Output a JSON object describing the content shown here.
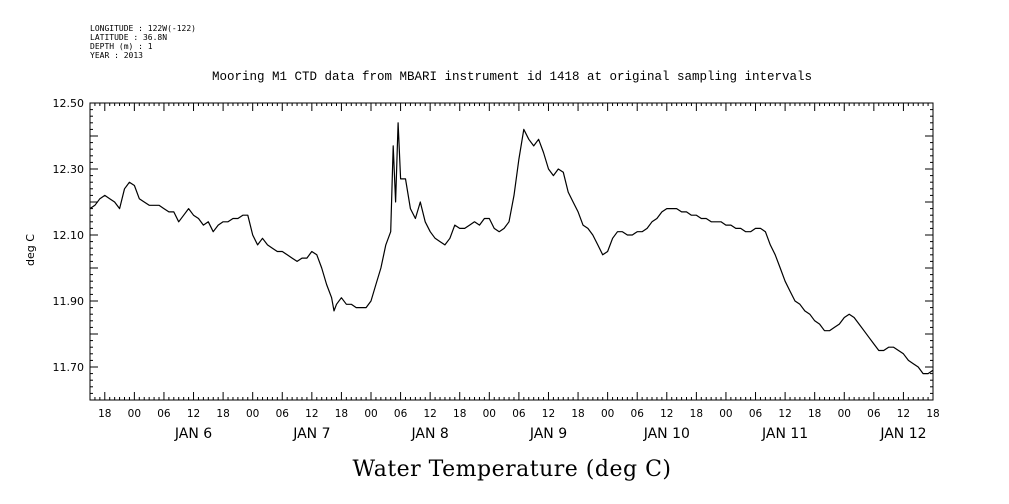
{
  "header": {
    "longitude": "LONGITUDE : 122W(-122)",
    "latitude": "LATITUDE : 36.8N",
    "depth": "DEPTH (m) : 1",
    "year": "YEAR : 2013"
  },
  "chart_data": {
    "type": "line",
    "title": "Mooring M1 CTD data from MBARI instrument id 1418 at original sampling intervals",
    "xlabel": "Water Temperature (deg C)",
    "ylabel": "deg C",
    "ylim": [
      11.6,
      12.5
    ],
    "yticks": [
      "12.50",
      "12.30",
      "12.10",
      "11.90",
      "11.70"
    ],
    "x_unit": "hours since 2013-01-05 00:00",
    "xlim": [
      15,
      186
    ],
    "hour_ticks": [
      "00",
      "06",
      "12",
      "18"
    ],
    "days": [
      "JAN 6",
      "JAN 7",
      "JAN 8",
      "JAN 9",
      "JAN 10",
      "JAN 11",
      "JAN 12"
    ],
    "grid": false,
    "series": [
      {
        "points": [
          [
            15,
            12.18
          ],
          [
            16,
            12.19
          ],
          [
            17,
            12.21
          ],
          [
            18,
            12.22
          ],
          [
            19,
            12.21
          ],
          [
            20,
            12.2
          ],
          [
            21,
            12.18
          ],
          [
            22,
            12.24
          ],
          [
            22.5,
            12.25
          ],
          [
            23,
            12.26
          ],
          [
            24,
            12.25
          ],
          [
            25,
            12.21
          ],
          [
            26,
            12.2
          ],
          [
            27,
            12.19
          ],
          [
            28,
            12.19
          ],
          [
            29,
            12.19
          ],
          [
            30,
            12.18
          ],
          [
            31,
            12.17
          ],
          [
            32,
            12.17
          ],
          [
            33,
            12.14
          ],
          [
            34,
            12.16
          ],
          [
            35,
            12.18
          ],
          [
            36,
            12.16
          ],
          [
            37,
            12.15
          ],
          [
            38,
            12.13
          ],
          [
            39,
            12.14
          ],
          [
            40,
            12.11
          ],
          [
            41,
            12.13
          ],
          [
            42,
            12.14
          ],
          [
            43,
            12.14
          ],
          [
            44,
            12.15
          ],
          [
            45,
            12.15
          ],
          [
            46,
            12.16
          ],
          [
            47,
            12.16
          ],
          [
            48,
            12.1
          ],
          [
            49,
            12.07
          ],
          [
            50,
            12.09
          ],
          [
            51,
            12.07
          ],
          [
            52,
            12.06
          ],
          [
            53,
            12.05
          ],
          [
            54,
            12.05
          ],
          [
            55,
            12.04
          ],
          [
            56,
            12.03
          ],
          [
            57,
            12.02
          ],
          [
            58,
            12.03
          ],
          [
            59,
            12.03
          ],
          [
            60,
            12.05
          ],
          [
            61,
            12.04
          ],
          [
            62,
            12.0
          ],
          [
            63,
            11.95
          ],
          [
            64,
            11.91
          ],
          [
            64.5,
            11.87
          ],
          [
            65,
            11.89
          ],
          [
            66,
            11.91
          ],
          [
            67,
            11.89
          ],
          [
            68,
            11.89
          ],
          [
            69,
            11.88
          ],
          [
            70,
            11.88
          ],
          [
            71,
            11.88
          ],
          [
            72,
            11.9
          ],
          [
            73,
            11.95
          ],
          [
            74,
            12.0
          ],
          [
            75,
            12.07
          ],
          [
            76,
            12.11
          ],
          [
            76.5,
            12.37
          ],
          [
            77,
            12.2
          ],
          [
            77.5,
            12.44
          ],
          [
            78,
            12.27
          ],
          [
            79,
            12.27
          ],
          [
            80,
            12.18
          ],
          [
            81,
            12.15
          ],
          [
            82,
            12.2
          ],
          [
            83,
            12.14
          ],
          [
            84,
            12.11
          ],
          [
            85,
            12.09
          ],
          [
            86,
            12.08
          ],
          [
            87,
            12.07
          ],
          [
            88,
            12.09
          ],
          [
            89,
            12.13
          ],
          [
            90,
            12.12
          ],
          [
            91,
            12.12
          ],
          [
            92,
            12.13
          ],
          [
            93,
            12.14
          ],
          [
            94,
            12.13
          ],
          [
            95,
            12.15
          ],
          [
            96,
            12.15
          ],
          [
            97,
            12.12
          ],
          [
            98,
            12.11
          ],
          [
            99,
            12.12
          ],
          [
            100,
            12.14
          ],
          [
            101,
            12.22
          ],
          [
            102,
            12.33
          ],
          [
            103,
            12.42
          ],
          [
            104,
            12.39
          ],
          [
            105,
            12.37
          ],
          [
            106,
            12.39
          ],
          [
            107,
            12.35
          ],
          [
            108,
            12.3
          ],
          [
            109,
            12.28
          ],
          [
            110,
            12.3
          ],
          [
            111,
            12.29
          ],
          [
            112,
            12.23
          ],
          [
            113,
            12.2
          ],
          [
            114,
            12.17
          ],
          [
            115,
            12.13
          ],
          [
            116,
            12.12
          ],
          [
            117,
            12.1
          ],
          [
            118,
            12.07
          ],
          [
            119,
            12.04
          ],
          [
            120,
            12.05
          ],
          [
            121,
            12.09
          ],
          [
            122,
            12.11
          ],
          [
            123,
            12.11
          ],
          [
            124,
            12.1
          ],
          [
            125,
            12.1
          ],
          [
            126,
            12.11
          ],
          [
            127,
            12.11
          ],
          [
            128,
            12.12
          ],
          [
            129,
            12.14
          ],
          [
            130,
            12.15
          ],
          [
            131,
            12.17
          ],
          [
            132,
            12.18
          ],
          [
            133,
            12.18
          ],
          [
            134,
            12.18
          ],
          [
            135,
            12.17
          ],
          [
            136,
            12.17
          ],
          [
            137,
            12.16
          ],
          [
            138,
            12.16
          ],
          [
            139,
            12.15
          ],
          [
            140,
            12.15
          ],
          [
            141,
            12.14
          ],
          [
            142,
            12.14
          ],
          [
            143,
            12.14
          ],
          [
            144,
            12.13
          ],
          [
            145,
            12.13
          ],
          [
            146,
            12.12
          ],
          [
            147,
            12.12
          ],
          [
            148,
            12.11
          ],
          [
            149,
            12.11
          ],
          [
            150,
            12.12
          ],
          [
            151,
            12.12
          ],
          [
            152,
            12.11
          ],
          [
            153,
            12.07
          ],
          [
            154,
            12.04
          ],
          [
            155,
            12.0
          ],
          [
            156,
            11.96
          ],
          [
            157,
            11.93
          ],
          [
            158,
            11.9
          ],
          [
            159,
            11.89
          ],
          [
            160,
            11.87
          ],
          [
            161,
            11.86
          ],
          [
            162,
            11.84
          ],
          [
            163,
            11.83
          ],
          [
            164,
            11.81
          ],
          [
            165,
            11.81
          ],
          [
            166,
            11.82
          ],
          [
            167,
            11.83
          ],
          [
            168,
            11.85
          ],
          [
            169,
            11.86
          ],
          [
            170,
            11.85
          ],
          [
            171,
            11.83
          ],
          [
            172,
            11.81
          ],
          [
            173,
            11.79
          ],
          [
            174,
            11.77
          ],
          [
            175,
            11.75
          ],
          [
            176,
            11.75
          ],
          [
            177,
            11.76
          ],
          [
            178,
            11.76
          ],
          [
            179,
            11.75
          ],
          [
            180,
            11.74
          ],
          [
            181,
            11.72
          ],
          [
            182,
            11.71
          ],
          [
            183,
            11.7
          ],
          [
            184,
            11.68
          ],
          [
            185,
            11.68
          ],
          [
            186,
            11.69
          ]
        ]
      }
    ]
  }
}
